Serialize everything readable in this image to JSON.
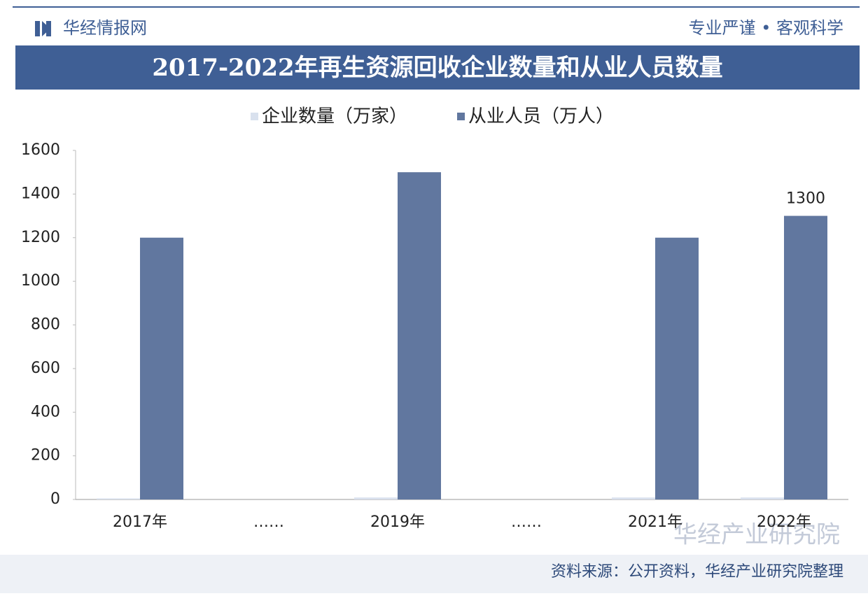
{
  "header": {
    "brand": "华经情报网",
    "slogan": "专业严谨 • 客观科学"
  },
  "chart_data": {
    "type": "bar",
    "title": "2017-2022年再生资源回收企业数量和从业人员数量",
    "categories": [
      "2017年",
      "……",
      "2019年",
      "……",
      "2021年",
      "2022年"
    ],
    "series": [
      {
        "name": "企业数量（万家）",
        "color": "#d9e1ee",
        "values": [
          5,
          null,
          9,
          null,
          9,
          9
        ]
      },
      {
        "name": "从业人员（万人）",
        "color": "#61779f",
        "values": [
          1200,
          null,
          1500,
          null,
          1200,
          1300
        ]
      }
    ],
    "ylim": [
      0,
      1600
    ],
    "yticks": [
      0,
      200,
      400,
      600,
      800,
      1000,
      1200,
      1400,
      1600
    ],
    "labeled_points": [
      [
        1,
        5
      ]
    ]
  },
  "footer": {
    "source": "资料来源：公开资料，华经产业研究院整理",
    "watermark": "华经产业研究院"
  }
}
